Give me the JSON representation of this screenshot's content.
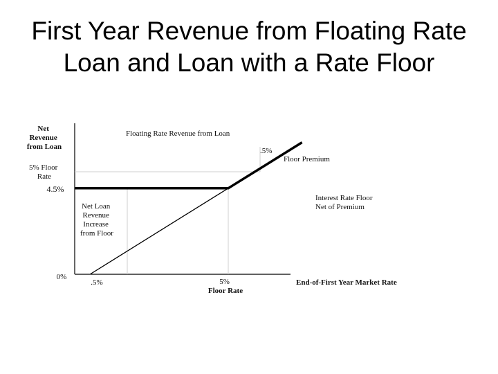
{
  "slide": {
    "title_line1": "First Year Revenue from Floating Rate",
    "title_line2": "Loan and Loan with a Rate Floor"
  },
  "chart_data": {
    "type": "line",
    "ylabel_lines": [
      "Net",
      "Revenue",
      "from  Loan"
    ],
    "xlabel": "End-of-First Year Market Rate",
    "y_ticks": [
      {
        "lines": [
          "5% Floor",
          "Rate"
        ],
        "value": 5.0
      },
      {
        "lines": [
          "4.5%"
        ],
        "value": 4.5
      },
      {
        "lines": [
          "0%"
        ],
        "value": 0
      }
    ],
    "x_ticks": [
      {
        "lines": [
          ".5%"
        ],
        "value": 0.5
      },
      {
        "lines": [
          "5%",
          "Floor Rate"
        ],
        "value": 5.0
      }
    ],
    "series": [
      {
        "name": "Floating Rate Revenue from Loan",
        "x": [
          0.5,
          5.0,
          7.4
        ],
        "y": [
          0,
          4.5,
          6.9
        ]
      },
      {
        "name": "Interest Rate Floor Net of Premium",
        "x": [
          0,
          5.0,
          7.4
        ],
        "y": [
          4.5,
          4.5,
          6.9
        ]
      }
    ],
    "annotations": {
      "floor_premium_value": ".5%",
      "floor_premium_label": "Floor Premium",
      "interest_floor_lines": [
        "Interest Rate Floor",
        "Net of Premium"
      ],
      "net_increase_lines": [
        "Net Loan",
        "Revenue",
        "Increase",
        "from Floor"
      ]
    }
  }
}
